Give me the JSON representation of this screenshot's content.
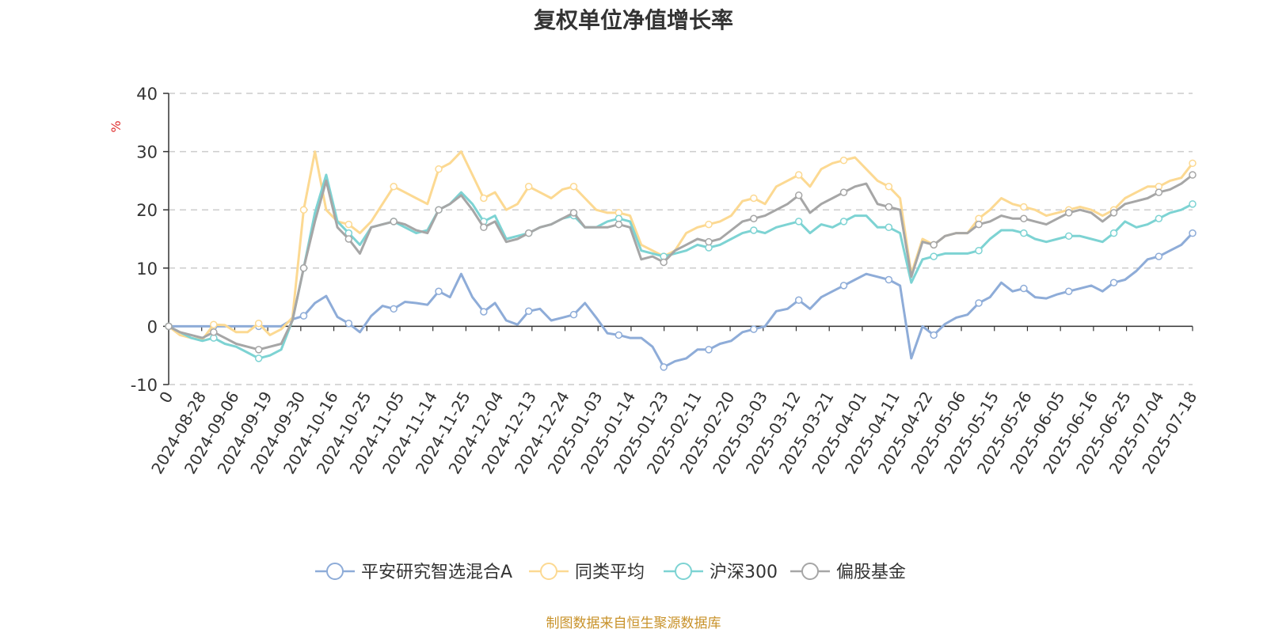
{
  "chart_data": {
    "type": "line",
    "title": "复权单位净值增长率",
    "ylabel": "%",
    "xlabel": "",
    "ylim": [
      -10,
      40
    ],
    "yticks": [
      -10,
      0,
      10,
      20,
      30,
      40
    ],
    "grid": "horizontal dashed",
    "legend_position": "bottom",
    "x_tick_labels": [
      "0",
      "2024-08-28",
      "2024-09-06",
      "2024-09-19",
      "2024-09-30",
      "2024-10-16",
      "2024-10-25",
      "2024-11-05",
      "2024-11-14",
      "2024-11-25",
      "2024-12-04",
      "2024-12-13",
      "2024-12-24",
      "2025-01-03",
      "2025-01-14",
      "2025-01-23",
      "2025-02-11",
      "2025-02-20",
      "2025-03-03",
      "2025-03-12",
      "2025-03-21",
      "2025-04-01",
      "2025-04-11",
      "2025-04-22",
      "2025-05-06",
      "2025-05-15",
      "2025-05-26",
      "2025-06-05",
      "2025-06-16",
      "2025-06-25",
      "2025-07-04",
      "2025-07-18"
    ],
    "series": [
      {
        "name": "平安研究智选混合A",
        "color": "#8eacd8",
        "values": [
          0,
          0,
          0,
          0,
          0,
          0,
          0,
          0,
          0,
          0,
          0,
          1.2,
          1.8,
          4.0,
          5.2,
          1.6,
          0.5,
          -1.0,
          1.8,
          3.5,
          3.0,
          4.2,
          4.0,
          3.7,
          6.0,
          5.0,
          9.0,
          5.0,
          2.5,
          4.0,
          1.0,
          0.3,
          2.6,
          3.0,
          1.0,
          1.5,
          2.0,
          4.0,
          1.5,
          -1.2,
          -1.5,
          -2.0,
          -2.0,
          -3.5,
          -7.0,
          -6.0,
          -5.5,
          -4.0,
          -4.0,
          -3.0,
          -2.5,
          -1.0,
          -0.5,
          0,
          2.6,
          3.0,
          4.5,
          3.0,
          5.0,
          6.0,
          7.0,
          8.0,
          9.0,
          8.5,
          8.0,
          7.0,
          -5.5,
          0,
          -1.5,
          0.4,
          1.5,
          2.0,
          4.0,
          5.0,
          7.5,
          6.0,
          6.5,
          5.0,
          4.8,
          5.5,
          6.0,
          6.5,
          7.0,
          6.0,
          7.5,
          8.0,
          9.5,
          11.5,
          12.0,
          13.0,
          14.0,
          16.0
        ]
      },
      {
        "name": "同类平均",
        "color": "#fcd992",
        "values": [
          0,
          -1.5,
          -2.0,
          -2.3,
          0.3,
          0.2,
          -1.0,
          -1.0,
          0.5,
          -1.5,
          -0.5,
          1.5,
          20.0,
          30.0,
          20.0,
          18.0,
          17.5,
          16.0,
          18.0,
          21.0,
          24.0,
          23.0,
          22.0,
          21.0,
          27.0,
          28.0,
          30.0,
          26.0,
          22.0,
          23.0,
          20.0,
          21.0,
          24.0,
          23.0,
          22.0,
          23.5,
          24.0,
          22.0,
          20.0,
          19.5,
          19.5,
          19.0,
          14.0,
          13.0,
          12.0,
          13.0,
          16.0,
          17.0,
          17.5,
          18.0,
          19.0,
          21.5,
          22.0,
          21.0,
          24.0,
          25.0,
          26.0,
          24.0,
          27.0,
          28.0,
          28.5,
          29.0,
          27.0,
          25.0,
          24.0,
          22.0,
          9.0,
          15.0,
          14.0,
          15.5,
          16.0,
          16.0,
          18.5,
          20.0,
          22.0,
          21.0,
          20.5,
          20.0,
          19.0,
          19.5,
          20.0,
          20.5,
          20.0,
          19.0,
          20.0,
          22.0,
          23.0,
          24.0,
          24.0,
          25.0,
          25.5,
          28.0
        ]
      },
      {
        "name": "沪深300",
        "color": "#7dd3d3",
        "values": [
          0,
          -1.0,
          -2.0,
          -2.5,
          -2.0,
          -3.0,
          -3.5,
          -4.5,
          -5.5,
          -5.0,
          -4.0,
          1.0,
          10.0,
          19.5,
          26.0,
          18.0,
          16.0,
          14.0,
          17.0,
          17.5,
          18.0,
          17.0,
          16.0,
          16.5,
          20.0,
          21.0,
          23.0,
          21.0,
          18.0,
          19.0,
          15.0,
          15.5,
          16.0,
          17.0,
          17.5,
          18.5,
          19.0,
          17.0,
          17.0,
          18.0,
          18.5,
          18.0,
          13.0,
          12.5,
          12.0,
          12.5,
          13.0,
          14.0,
          13.5,
          14.0,
          15.0,
          16.0,
          16.5,
          16.0,
          17.0,
          17.5,
          18.0,
          16.0,
          17.5,
          17.0,
          18.0,
          19.0,
          19.0,
          17.0,
          17.0,
          16.0,
          7.5,
          11.5,
          12.0,
          12.5,
          12.5,
          12.5,
          13.0,
          15.0,
          16.5,
          16.5,
          16.0,
          15.0,
          14.5,
          15.0,
          15.5,
          15.5,
          15.0,
          14.5,
          16.0,
          18.0,
          17.0,
          17.5,
          18.5,
          19.5,
          20.0,
          21.0
        ]
      },
      {
        "name": "偏股基金",
        "color": "#a6a6a6",
        "values": [
          0,
          -1.0,
          -1.5,
          -2.0,
          -1.0,
          -2.0,
          -3.0,
          -3.5,
          -4.0,
          -3.5,
          -3.0,
          1.0,
          10.0,
          18.0,
          25.0,
          17.0,
          15.0,
          12.5,
          17.0,
          17.5,
          18.0,
          17.5,
          16.5,
          16.0,
          20.0,
          21.0,
          22.5,
          20.0,
          17.0,
          18.0,
          14.5,
          15.0,
          16.0,
          17.0,
          17.5,
          18.5,
          19.5,
          17.0,
          17.0,
          17.0,
          17.5,
          17.0,
          11.5,
          12.0,
          11.0,
          13.0,
          14.0,
          15.0,
          14.5,
          15.0,
          16.5,
          18.0,
          18.5,
          19.0,
          20.0,
          21.0,
          22.5,
          19.5,
          21.0,
          22.0,
          23.0,
          24.0,
          24.5,
          21.0,
          20.5,
          20.0,
          8.5,
          14.5,
          14.0,
          15.5,
          16.0,
          16.0,
          17.5,
          18.0,
          19.0,
          18.5,
          18.5,
          18.0,
          17.5,
          18.5,
          19.5,
          20.0,
          19.5,
          18.0,
          19.5,
          21.0,
          21.5,
          22.0,
          23.0,
          23.5,
          24.5,
          26.0
        ]
      }
    ]
  },
  "footer": "制图数据来自恒生聚源数据库"
}
